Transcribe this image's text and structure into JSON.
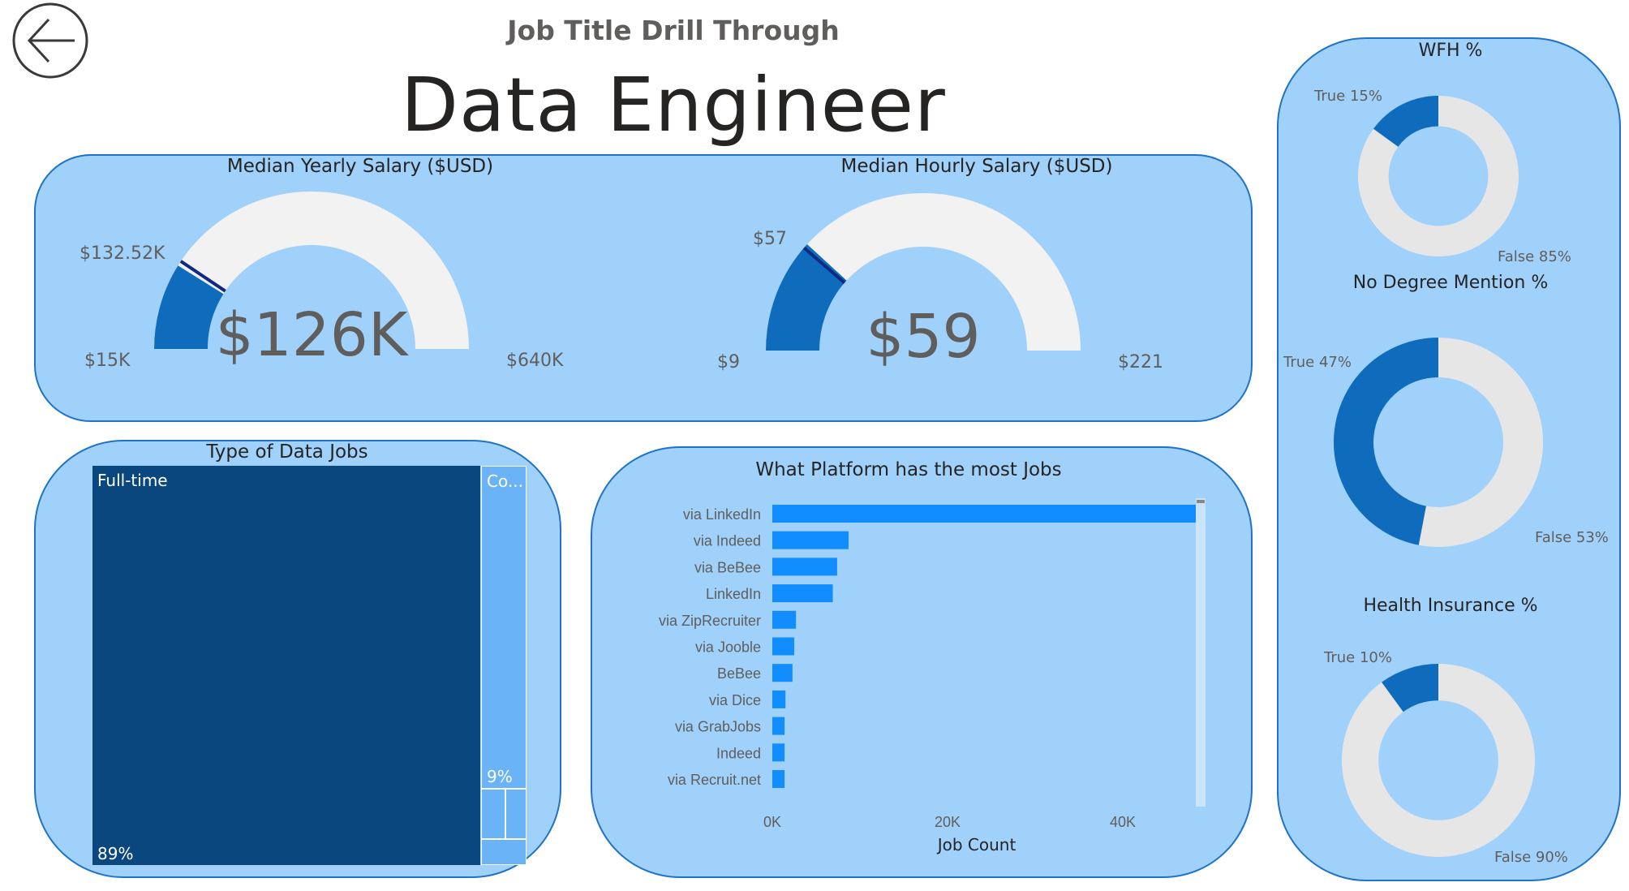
{
  "header": {
    "back_icon": "arrow-left-circle-icon",
    "subtitle": "Job Title Drill Through",
    "title": "Data Engineer"
  },
  "gauges": [
    {
      "title": "Median Yearly Salary ($USD)",
      "value_text": "$126K",
      "min_text": "$15K",
      "max_text": "$640K",
      "target_text": "$132.52K",
      "min": 15000,
      "max": 640000,
      "value": 126000,
      "target": 132520
    },
    {
      "title": "Median Hourly Salary ($USD)",
      "value_text": "$59",
      "min_text": "$9",
      "max_text": "$221",
      "target_text": "$57",
      "min": 9,
      "max": 221,
      "value": 59,
      "target": 57
    }
  ],
  "treemap": {
    "title": "Type of Data Jobs",
    "cells": [
      {
        "label": "Full-time",
        "percent_text": "89%",
        "share": 0.89
      },
      {
        "label": "Co...",
        "percent_text": "9%",
        "share": 0.09
      }
    ]
  },
  "chart_data": [
    {
      "type": "bar",
      "orientation": "horizontal",
      "title": "What Platform has the most Jobs",
      "xlabel": "Job Count",
      "ylabel": "",
      "categories": [
        "via LinkedIn",
        "via Indeed",
        "via BeBee",
        "LinkedIn",
        "via ZipRecruiter",
        "via Jooble",
        "BeBee",
        "via Dice",
        "via GrabJobs",
        "Indeed",
        "via Recruit.net"
      ],
      "values": [
        49000,
        8700,
        7400,
        6900,
        2700,
        2500,
        2300,
        1500,
        1400,
        1400,
        1400
      ],
      "xlim": [
        0,
        50000
      ],
      "xticks": [
        0,
        20000,
        40000
      ],
      "xtick_labels": [
        "0K",
        "20K",
        "40K"
      ],
      "bar_color": "#118dff"
    },
    {
      "type": "pie",
      "style": "donut",
      "title": "WFH %",
      "labels": [
        "True",
        "False"
      ],
      "values": [
        15,
        85
      ],
      "label_texts": [
        "True 15%",
        "False 85%"
      ]
    },
    {
      "type": "pie",
      "style": "donut",
      "title": "No Degree Mention %",
      "labels": [
        "True",
        "False"
      ],
      "values": [
        47,
        53
      ],
      "label_texts": [
        "True 47%",
        "False 53%"
      ]
    },
    {
      "type": "pie",
      "style": "donut",
      "title": "Health Insurance %",
      "labels": [
        "True",
        "False"
      ],
      "values": [
        10,
        90
      ],
      "label_texts": [
        "True 10%",
        "False 90%"
      ]
    }
  ],
  "colors": {
    "card_bg": "#a0d1fb",
    "card_border": "#1e73c8",
    "gauge_fill": "#0f6cbd",
    "gauge_track": "#f2f2f2",
    "gauge_target": "#102a83",
    "treemap_main": "#0a477e",
    "treemap_secondary": "#6ab3f7",
    "bar": "#118dff",
    "donut_true": "#0f6cbd",
    "donut_false": "#e6e6e6"
  }
}
